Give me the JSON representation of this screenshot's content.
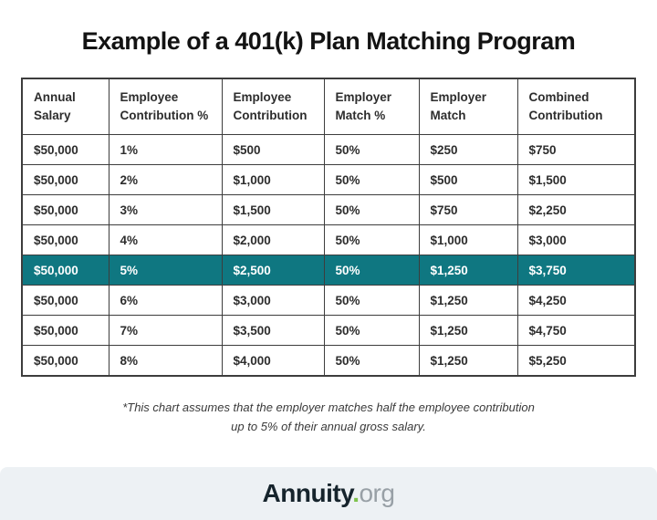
{
  "chart_data": {
    "type": "table",
    "title": "Example of a 401(k) Plan Matching Program",
    "columns": [
      "Annual Salary",
      "Employee Contribution %",
      "Employee Contribution",
      "Employer Match %",
      "Employer Match",
      "Combined Contribution"
    ],
    "rows": [
      [
        "$50,000",
        "1%",
        "$500",
        "50%",
        "$250",
        "$750"
      ],
      [
        "$50,000",
        "2%",
        "$1,000",
        "50%",
        "$500",
        "$1,500"
      ],
      [
        "$50,000",
        "3%",
        "$1,500",
        "50%",
        "$750",
        "$2,250"
      ],
      [
        "$50,000",
        "4%",
        "$2,000",
        "50%",
        "$1,000",
        "$3,000"
      ],
      [
        "$50,000",
        "5%",
        "$2,500",
        "50%",
        "$1,250",
        "$3,750"
      ],
      [
        "$50,000",
        "6%",
        "$3,000",
        "50%",
        "$1,250",
        "$4,250"
      ],
      [
        "$50,000",
        "7%",
        "$3,500",
        "50%",
        "$1,250",
        "$4,750"
      ],
      [
        "$50,000",
        "8%",
        "$4,000",
        "50%",
        "$1,250",
        "$5,250"
      ]
    ],
    "highlighted_row_index": 4,
    "footnote_line1": "*This chart assumes that the employer matches half the employee contribution",
    "footnote_line2": "up to 5% of their annual gross salary."
  },
  "footer": {
    "brand": "Annuity",
    "brand_dot": ".",
    "brand_tld": "org"
  },
  "colors": {
    "highlight_teal": "#0f7781",
    "border_dark": "#3d3d3d",
    "footer_bg": "#edf1f4",
    "brand_green": "#7dc24c",
    "brand_gray": "#98a0a6"
  }
}
